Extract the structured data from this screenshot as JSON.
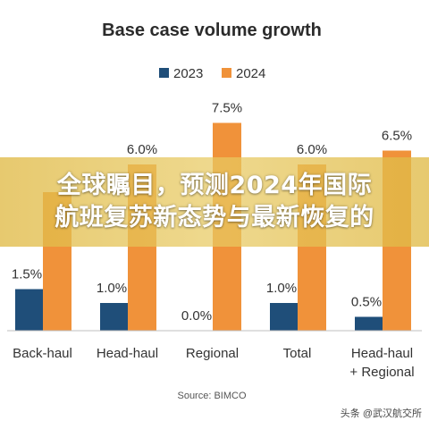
{
  "chart_data": {
    "type": "bar",
    "title": "Base case volume growth",
    "categories": [
      [
        "Back-haul"
      ],
      [
        "Head-haul"
      ],
      [
        "Regional"
      ],
      [
        "Total"
      ],
      [
        "Head-haul",
        "+ Regional"
      ]
    ],
    "series": [
      {
        "name": "2023",
        "values": [
          1.5,
          1.0,
          0.0,
          1.0,
          0.5
        ],
        "labels": [
          "1.5%",
          "1.0%",
          "0.0%",
          "1.0%",
          "0.5%"
        ],
        "color": "#1f4e79"
      },
      {
        "name": "2024",
        "values": [
          5.0,
          6.0,
          7.5,
          6.0,
          6.5
        ],
        "labels": [
          "",
          "6.0%",
          "7.5%",
          "6.0%",
          "6.5%"
        ],
        "color": "#f0923a"
      }
    ],
    "ylim": [
      0,
      8
    ],
    "grid": false,
    "legend": "top-center",
    "source": "Source: BIMCO"
  },
  "overlay": {
    "lines": [
      "全球瞩目，预测2024年国际",
      "航班复苏新态势与最新恢复的"
    ]
  },
  "watermark": "头条 @武汉航交所"
}
